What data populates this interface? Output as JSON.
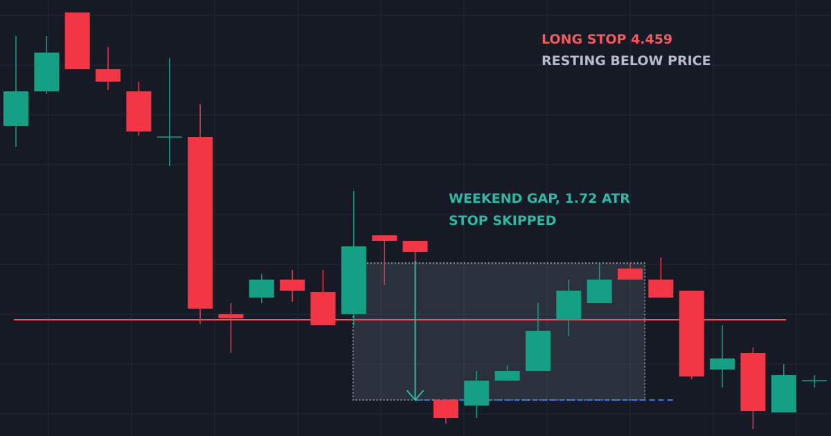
{
  "chart_data": {
    "type": "candlestick",
    "stop_label": "LONG STOP",
    "stop": 4.459,
    "stop_note": "RESTING BELOW PRICE",
    "gap_label": "WEEKEND GAP,",
    "gap_atr": 1.72,
    "gap_unit": "ATR",
    "gap_note": "STOP SKIPPED",
    "up_color": "#159f85",
    "down_color": "#f23645",
    "stop_color": "#f25b5b",
    "gap_color": "#2fb8a6",
    "level_color": "#2f7de1",
    "ylim": [
      4.375,
      4.69
    ],
    "open": [
      4.599,
      4.624,
      4.681,
      4.64,
      4.624,
      4.591,
      4.591,
      4.463,
      4.475,
      4.488,
      4.479,
      4.463,
      4.52,
      4.516,
      4.401,
      4.397,
      4.415,
      4.422,
      4.459,
      4.471,
      4.496,
      4.488,
      4.48,
      4.423,
      4.435,
      4.392,
      4.415
    ],
    "high": [
      4.664,
      4.664,
      4.681,
      4.656,
      4.631,
      4.648,
      4.615,
      4.471,
      4.492,
      4.495,
      4.495,
      4.552,
      4.52,
      4.516,
      4.401,
      4.422,
      4.426,
      4.471,
      4.488,
      4.5,
      4.5,
      4.504,
      4.48,
      4.455,
      4.439,
      4.427,
      4.419
    ],
    "low": [
      4.584,
      4.622,
      4.64,
      4.625,
      4.592,
      4.57,
      4.456,
      4.435,
      4.471,
      4.472,
      4.455,
      4.455,
      4.484,
      4.5,
      4.384,
      4.388,
      4.415,
      4.422,
      4.447,
      4.471,
      4.488,
      4.475,
      4.416,
      4.41,
      4.38,
      4.392,
      4.41
    ],
    "close": [
      4.624,
      4.652,
      4.64,
      4.631,
      4.595,
      4.591,
      4.467,
      4.46,
      4.488,
      4.48,
      4.455,
      4.512,
      4.516,
      4.508,
      4.388,
      4.415,
      4.422,
      4.451,
      4.48,
      4.488,
      4.488,
      4.475,
      4.418,
      4.431,
      4.393,
      4.419,
      4.415
    ]
  }
}
